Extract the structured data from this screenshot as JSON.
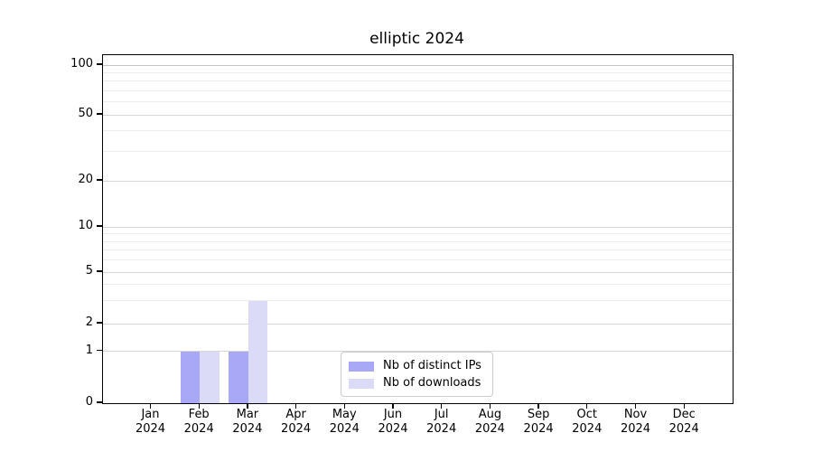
{
  "chart_data": {
    "type": "bar",
    "title": "elliptic 2024",
    "categories": [
      "Jan 2024",
      "Feb 2024",
      "Mar 2024",
      "Apr 2024",
      "May 2024",
      "Jun 2024",
      "Jul 2024",
      "Aug 2024",
      "Sep 2024",
      "Oct 2024",
      "Nov 2024",
      "Dec 2024"
    ],
    "series": [
      {
        "name": "Nb of distinct IPs",
        "color": "#a8a8f7",
        "values": [
          0,
          1,
          1,
          0,
          0,
          0,
          0,
          0,
          0,
          0,
          0,
          0
        ]
      },
      {
        "name": "Nb of downloads",
        "color": "#dbdbf8",
        "values": [
          0,
          1,
          3,
          0,
          0,
          0,
          0,
          0,
          0,
          0,
          0,
          0
        ]
      }
    ],
    "xlabel": "",
    "ylabel": "",
    "y_axis": {
      "scale": "symlog (linear 0 to 1, logarithmic above 1)",
      "major_ticks": [
        0,
        1,
        2,
        5,
        10,
        20,
        50,
        100
      ],
      "minor_ticks": [
        3,
        4,
        6,
        7,
        8,
        9,
        30,
        40,
        60,
        70,
        80,
        90
      ],
      "ylim": [
        0,
        115
      ]
    },
    "grid": "horizontal, major and minor",
    "legend": {
      "position": "lower center",
      "entries": [
        "Nb of distinct IPs",
        "Nb of downloads"
      ]
    },
    "colors": {
      "bar_distinct_ips": "#a8a8f7",
      "bar_downloads": "#dbdbf8",
      "grid_major": "#d6d6d6",
      "grid_minor": "#ececec",
      "grid_top_line": "#c3c3c3",
      "axis": "#000000",
      "legend_border": "#cccccc",
      "background": "#ffffff"
    }
  }
}
